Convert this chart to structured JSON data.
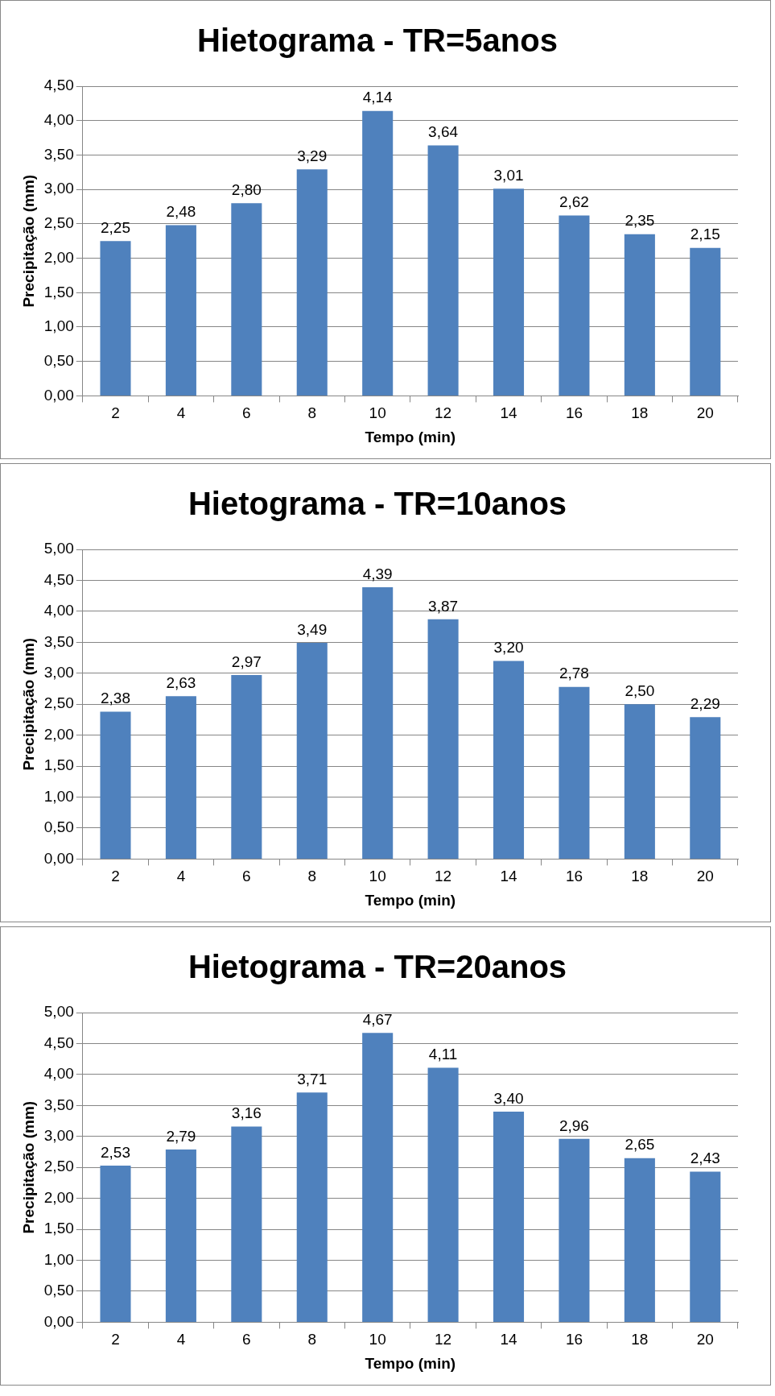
{
  "chart_data": [
    {
      "type": "bar",
      "title": "Hietograma - TR=5anos",
      "xlabel": "Tempo (min)",
      "ylabel": "Precipitação (mm)",
      "categories": [
        "2",
        "4",
        "6",
        "8",
        "10",
        "12",
        "14",
        "16",
        "18",
        "20"
      ],
      "values": [
        2.25,
        2.48,
        2.8,
        3.29,
        4.14,
        3.64,
        3.01,
        2.62,
        2.35,
        2.15
      ],
      "value_labels": [
        "2,25",
        "2,48",
        "2,80",
        "3,29",
        "4,14",
        "3,64",
        "3,01",
        "2,62",
        "2,35",
        "2,15"
      ],
      "color": "#4f81bd",
      "ylim": [
        0,
        4.5
      ],
      "yticks": [
        {
          "value": 0,
          "label": "0,00"
        },
        {
          "value": 0.5,
          "label": "0,50"
        },
        {
          "value": 1,
          "label": "1,00"
        },
        {
          "value": 1.5,
          "label": "1,50"
        },
        {
          "value": 2,
          "label": "2,00"
        },
        {
          "value": 2.5,
          "label": "2,50"
        },
        {
          "value": 3,
          "label": "3,00"
        },
        {
          "value": 3.5,
          "label": "3,50"
        },
        {
          "value": 4,
          "label": "4,00"
        },
        {
          "value": 4.5,
          "label": "4,50"
        }
      ],
      "grid": "y"
    },
    {
      "type": "bar",
      "title": "Hietograma - TR=10anos",
      "xlabel": "Tempo (min)",
      "ylabel": "Precipitação (mm)",
      "categories": [
        "2",
        "4",
        "6",
        "8",
        "10",
        "12",
        "14",
        "16",
        "18",
        "20"
      ],
      "values": [
        2.38,
        2.63,
        2.97,
        3.49,
        4.39,
        3.87,
        3.2,
        2.78,
        2.5,
        2.29
      ],
      "value_labels": [
        "2,38",
        "2,63",
        "2,97",
        "3,49",
        "4,39",
        "3,87",
        "3,20",
        "2,78",
        "2,50",
        "2,29"
      ],
      "color": "#4f81bd",
      "ylim": [
        0,
        5
      ],
      "yticks": [
        {
          "value": 0,
          "label": "0,00"
        },
        {
          "value": 0.5,
          "label": "0,50"
        },
        {
          "value": 1,
          "label": "1,00"
        },
        {
          "value": 1.5,
          "label": "1,50"
        },
        {
          "value": 2,
          "label": "2,00"
        },
        {
          "value": 2.5,
          "label": "2,50"
        },
        {
          "value": 3,
          "label": "3,00"
        },
        {
          "value": 3.5,
          "label": "3,50"
        },
        {
          "value": 4,
          "label": "4,00"
        },
        {
          "value": 4.5,
          "label": "4,50"
        },
        {
          "value": 5,
          "label": "5,00"
        }
      ],
      "grid": "y"
    },
    {
      "type": "bar",
      "title": "Hietograma - TR=20anos",
      "xlabel": "Tempo (min)",
      "ylabel": "Precipitação (mm)",
      "categories": [
        "2",
        "4",
        "6",
        "8",
        "10",
        "12",
        "14",
        "16",
        "18",
        "20"
      ],
      "values": [
        2.53,
        2.79,
        3.16,
        3.71,
        4.67,
        4.11,
        3.4,
        2.96,
        2.65,
        2.43
      ],
      "value_labels": [
        "2,53",
        "2,79",
        "3,16",
        "3,71",
        "4,67",
        "4,11",
        "3,40",
        "2,96",
        "2,65",
        "2,43"
      ],
      "color": "#4f81bd",
      "ylim": [
        0,
        5
      ],
      "yticks": [
        {
          "value": 0,
          "label": "0,00"
        },
        {
          "value": 0.5,
          "label": "0,50"
        },
        {
          "value": 1,
          "label": "1,00"
        },
        {
          "value": 1.5,
          "label": "1,50"
        },
        {
          "value": 2,
          "label": "2,00"
        },
        {
          "value": 2.5,
          "label": "2,50"
        },
        {
          "value": 3,
          "label": "3,00"
        },
        {
          "value": 3.5,
          "label": "3,50"
        },
        {
          "value": 4,
          "label": "4,00"
        },
        {
          "value": 4.5,
          "label": "4,50"
        },
        {
          "value": 5,
          "label": "5,00"
        }
      ],
      "grid": "y"
    }
  ]
}
